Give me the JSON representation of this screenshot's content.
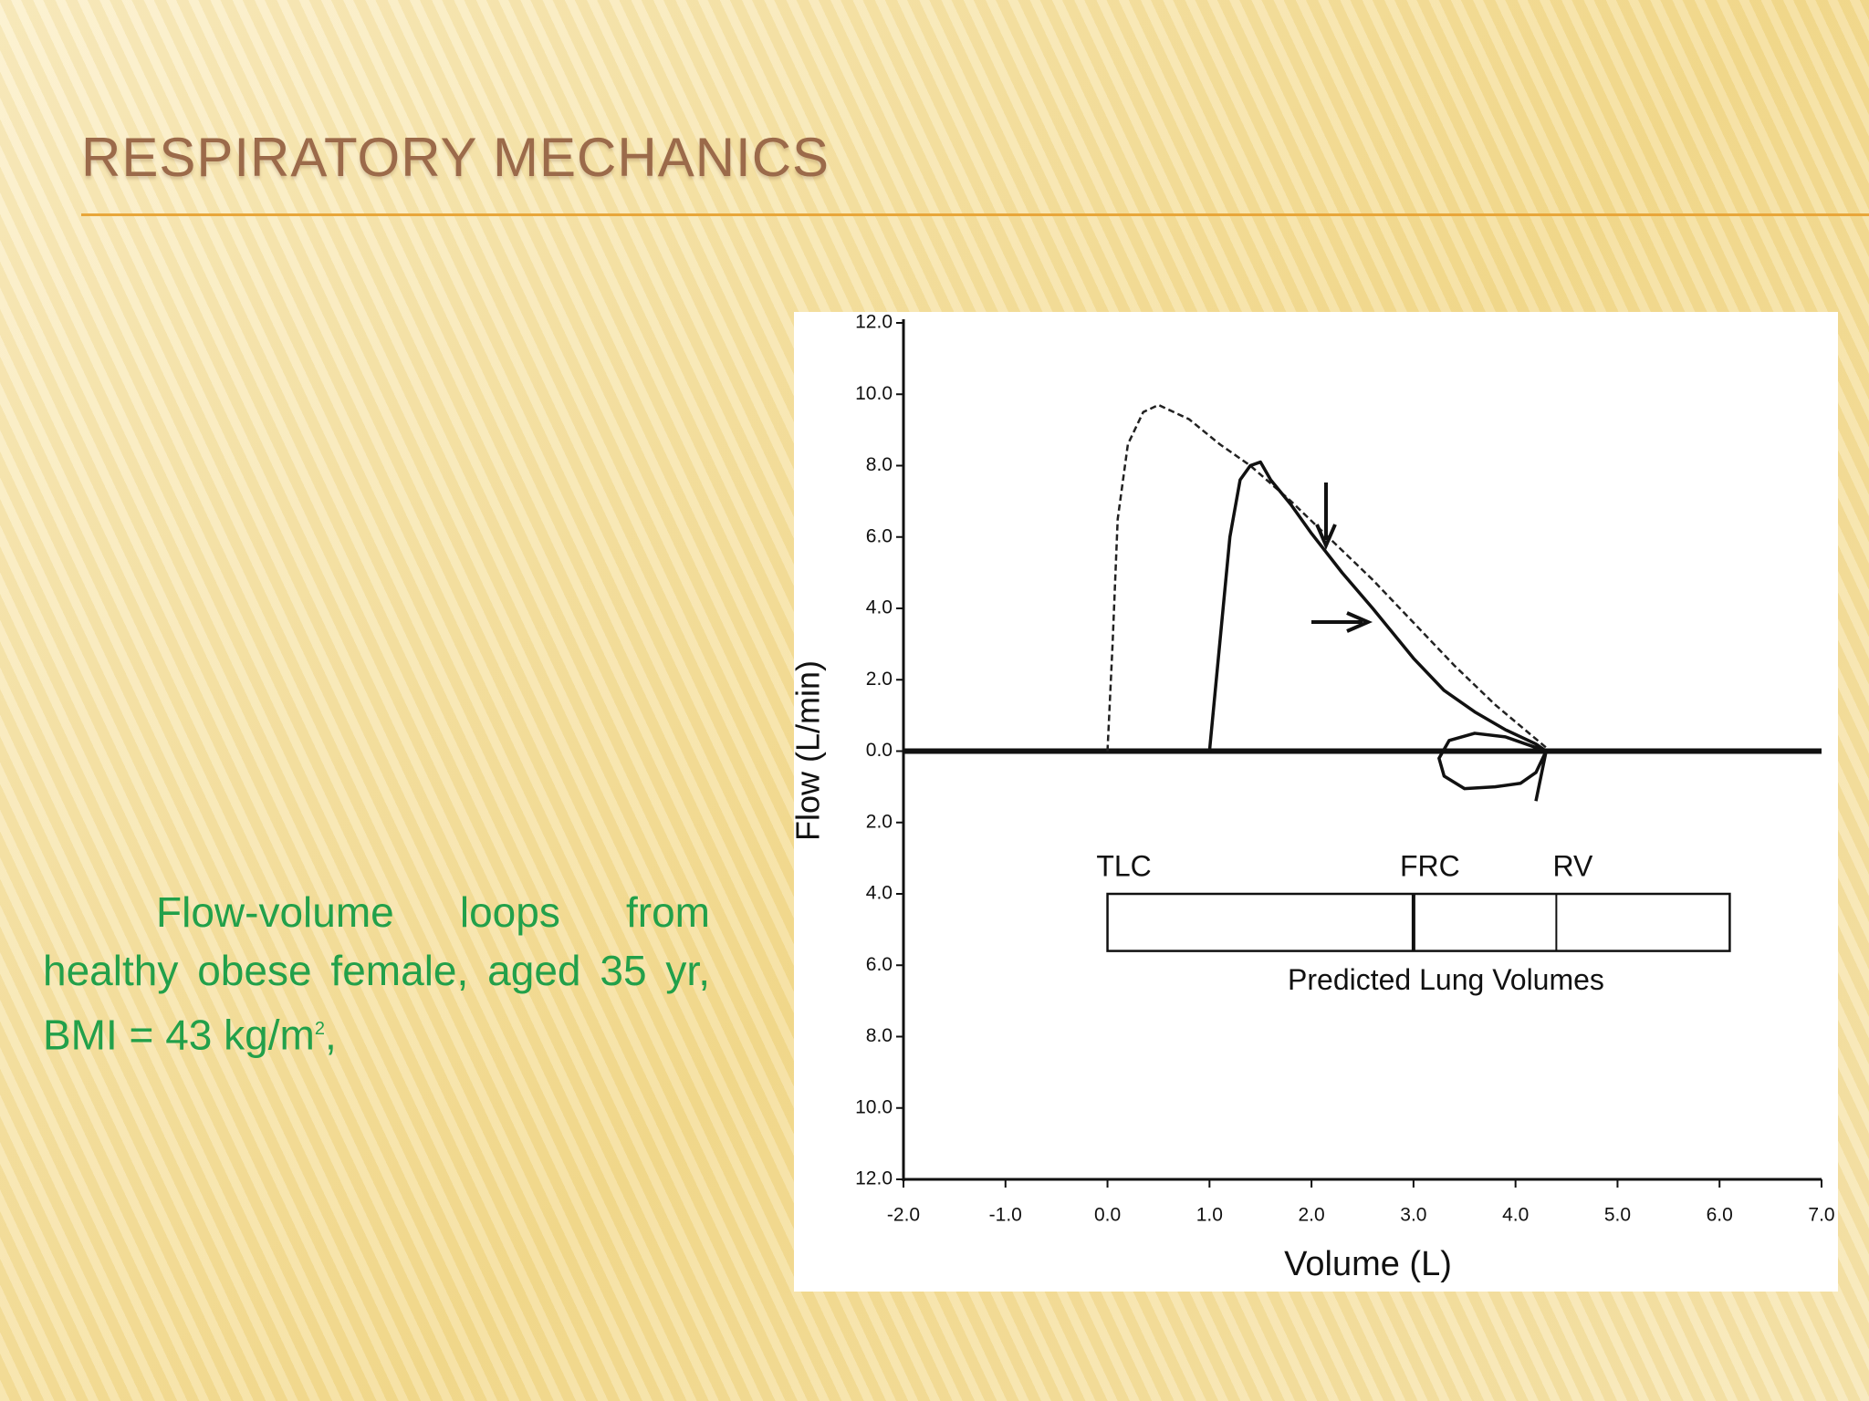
{
  "slide": {
    "title": "Respiratory Mechanics",
    "body": "Flow-volume loops from healthy obese female, aged 35 yr, BMI = 43 kg/m",
    "body_sup": "2",
    "body_end": ","
  },
  "chart_data": {
    "type": "line",
    "xlabel": "Volume (L)",
    "ylabel": "Flow (L/min)",
    "xlim": [
      -2,
      7
    ],
    "ylim": [
      -12,
      12
    ],
    "xticks": [
      {
        "value": -2,
        "label": "-2.0"
      },
      {
        "value": -1,
        "label": "-1.0"
      },
      {
        "value": 0,
        "label": "0.0"
      },
      {
        "value": 1,
        "label": "1.0"
      },
      {
        "value": 2,
        "label": "2.0"
      },
      {
        "value": 3,
        "label": "3.0"
      },
      {
        "value": 4,
        "label": "4.0"
      },
      {
        "value": 5,
        "label": "5.0"
      },
      {
        "value": 6,
        "label": "6.0"
      },
      {
        "value": 7,
        "label": "7.0"
      }
    ],
    "yticks": [
      {
        "value": 12,
        "label": "12.0"
      },
      {
        "value": 10,
        "label": "10.0"
      },
      {
        "value": 8,
        "label": "8.0"
      },
      {
        "value": 6,
        "label": "6.0"
      },
      {
        "value": 4,
        "label": "4.0"
      },
      {
        "value": 2,
        "label": "2.0"
      },
      {
        "value": 0,
        "label": "0.0"
      },
      {
        "value": -2,
        "label": "2.0"
      },
      {
        "value": -4,
        "label": "4.0"
      },
      {
        "value": -6,
        "label": "6.0"
      },
      {
        "value": -8,
        "label": "8.0"
      },
      {
        "value": -10,
        "label": "10.0"
      },
      {
        "value": -12,
        "label": "12.0"
      }
    ],
    "series": [
      {
        "color": "#222222",
        "dash": true,
        "x": [
          0,
          0.05,
          0.1,
          0.2,
          0.35,
          0.5,
          0.8,
          1.1,
          1.4,
          1.8,
          2.2,
          2.6,
          3.0,
          3.4,
          3.8,
          4.3
        ],
        "values": [
          0,
          3.0,
          6.5,
          8.6,
          9.5,
          9.7,
          9.3,
          8.6,
          8.0,
          7.0,
          5.9,
          4.8,
          3.6,
          2.4,
          1.3,
          0.1
        ]
      },
      {
        "color": "#111111",
        "dash": false,
        "x": [
          1.0,
          1.1,
          1.2,
          1.3,
          1.4,
          1.5,
          1.6,
          1.8,
          2.0,
          2.3,
          2.6,
          3.0,
          3.3,
          3.6,
          3.9,
          4.2,
          4.3,
          4.2,
          4.05,
          3.8,
          3.5,
          3.3,
          3.25,
          3.35,
          3.6,
          3.9,
          4.2,
          4.3,
          4.2
        ],
        "values": [
          0,
          3.0,
          6.0,
          7.6,
          8.0,
          8.1,
          7.6,
          6.9,
          6.1,
          5.0,
          4.0,
          2.6,
          1.7,
          1.1,
          0.6,
          0.2,
          0.0,
          -0.6,
          -0.9,
          -1.0,
          -1.05,
          -0.7,
          -0.2,
          0.3,
          0.5,
          0.4,
          0.1,
          0.0,
          -1.4
        ]
      }
    ],
    "volume_markers": [
      {
        "label": "TLC",
        "value": 0
      },
      {
        "label": "FRC",
        "value": 3.0
      },
      {
        "label": "RV",
        "value": 4.4
      }
    ],
    "volume_bar": {
      "label": "Predicted Lung Volumes",
      "xlim": [
        0,
        6.1
      ],
      "ylim": [
        -5.6,
        -4.0
      ]
    }
  }
}
